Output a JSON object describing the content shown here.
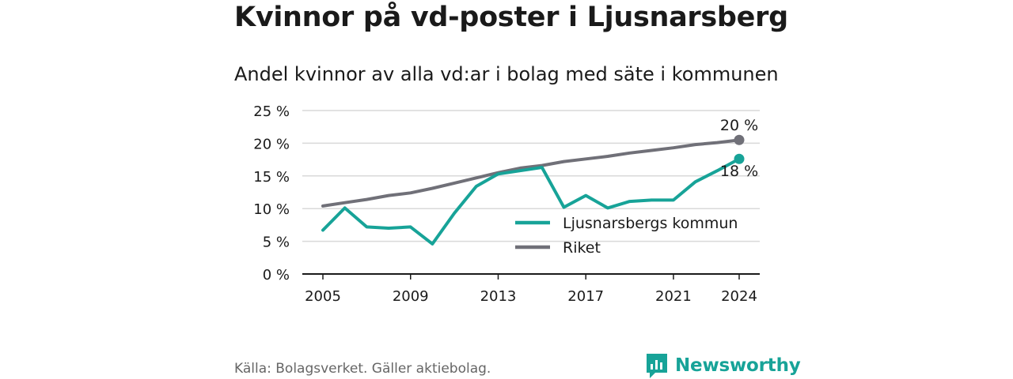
{
  "title": "Kvinnor på vd-poster i Ljusnarsberg",
  "subtitle": "Andel kvinnor av alla vd:ar i bolag med säte i kommunen",
  "source": "Källa: Bolagsverket. Gäller aktiebolag.",
  "brand": "Newsworthy",
  "colors": {
    "teal": "#17a398",
    "gray": "#707078",
    "axis": "#1a1a1a",
    "grid": "#d9d9d9"
  },
  "chart_data": {
    "type": "line",
    "x": [
      2005,
      2006,
      2007,
      2008,
      2009,
      2010,
      2011,
      2012,
      2013,
      2014,
      2015,
      2016,
      2017,
      2018,
      2019,
      2020,
      2021,
      2022,
      2023,
      2024
    ],
    "series": [
      {
        "name": "Ljusnarsbergs kommun",
        "color": "#17a398",
        "values": [
          6.7,
          10.1,
          7.2,
          7.0,
          7.2,
          4.6,
          9.3,
          13.4,
          15.3,
          15.8,
          16.3,
          10.2,
          12.0,
          10.1,
          11.1,
          11.3,
          11.3,
          14.1,
          15.8,
          17.6
        ]
      },
      {
        "name": "Riket",
        "color": "#707078",
        "values": [
          10.4,
          10.9,
          11.4,
          12.0,
          12.4,
          13.1,
          13.9,
          14.7,
          15.5,
          16.2,
          16.6,
          17.2,
          17.6,
          18.0,
          18.5,
          18.9,
          19.3,
          19.8,
          20.1,
          20.5
        ]
      }
    ],
    "ylim": [
      0,
      25
    ],
    "y_ticks": [
      "0 %",
      "5 %",
      "10 %",
      "15 %",
      "20 %",
      "25 %"
    ],
    "y_tick_values": [
      0,
      5,
      10,
      15,
      20,
      25
    ],
    "x_ticks": [
      "2005",
      "2009",
      "2013",
      "2017",
      "2021",
      "2024"
    ],
    "x_tick_values": [
      2005,
      2009,
      2013,
      2017,
      2021,
      2024
    ],
    "end_labels": {
      "Riket": "20 %",
      "Ljusnarsbergs kommun": "18 %"
    },
    "grid": true,
    "legend": "bottom-right inside plot"
  }
}
